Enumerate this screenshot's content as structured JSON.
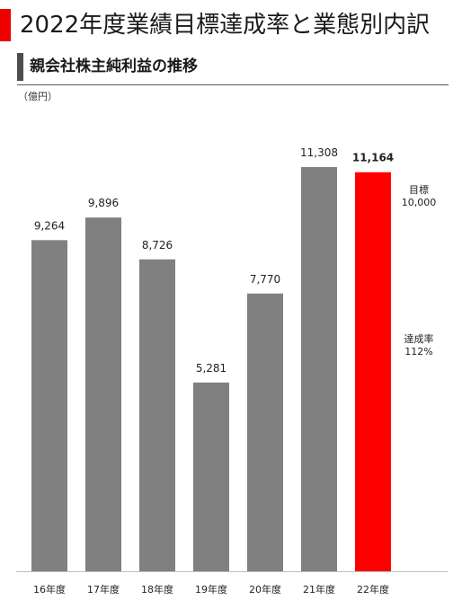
{
  "header": {
    "title": "2022年度業績目標達成率と業態別内訳",
    "accent_color": "#ee0000"
  },
  "section": {
    "title": "親会社株主純利益の推移"
  },
  "unit": "（億円）",
  "target": {
    "label": "目標",
    "value": "10,000"
  },
  "achievement": {
    "label": "達成率",
    "value": "112%"
  },
  "chart_data": {
    "type": "bar",
    "categories": [
      "16年度",
      "17年度",
      "18年度",
      "19年度",
      "20年度",
      "21年度",
      "22年度"
    ],
    "values": [
      9264,
      9896,
      8726,
      5281,
      7770,
      11308,
      11164
    ],
    "value_labels": [
      "9,264",
      "9,896",
      "8,726",
      "5,281",
      "7,770",
      "11,308",
      "11,164"
    ],
    "ylim": [
      0,
      11308
    ],
    "bar_color": "#808080",
    "highlight_index": 6,
    "highlight_color": "#ff0000",
    "grid": false
  }
}
